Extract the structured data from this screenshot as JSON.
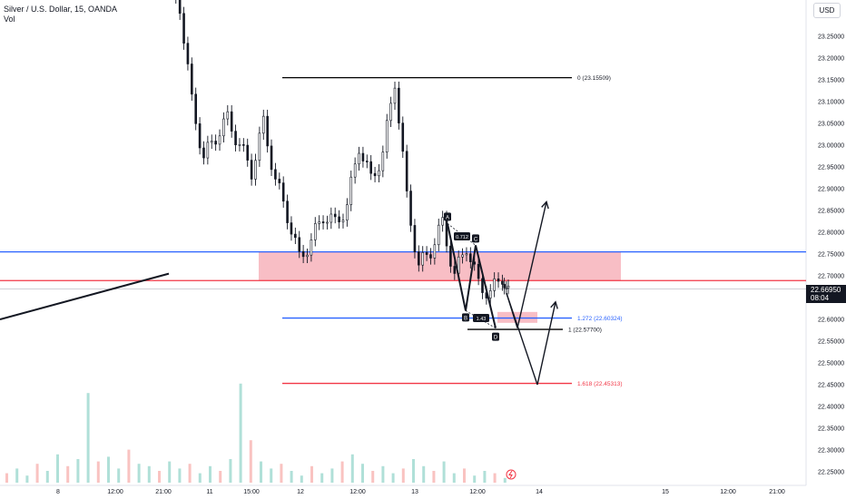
{
  "header": {
    "symbol_line": "Silver / U.S. Dollar, 15, OANDA",
    "indicator": "Vol"
  },
  "currency_button": "USD",
  "last_price": {
    "value": "22.66950",
    "countdown": "08:04"
  },
  "chart_data": {
    "type": "candlestick",
    "y_axis": {
      "range": [
        22.22,
        23.36
      ],
      "ticks": [
        "23.25000",
        "23.20000",
        "23.15000",
        "23.10000",
        "23.05000",
        "23.00000",
        "22.95000",
        "22.90000",
        "22.85000",
        "22.80000",
        "22.75000",
        "22.70000",
        "22.65000",
        "22.60000",
        "22.55000",
        "22.50000",
        "22.45000",
        "22.40000",
        "22.35000",
        "22.30000",
        "22.25000"
      ]
    },
    "x_axis": {
      "ticks": [
        "8",
        "12:00",
        "21:00",
        "11",
        "15:00",
        "12",
        "12:00",
        "13",
        "12:00",
        "14",
        "15",
        "12:00",
        "21:00"
      ]
    },
    "price_path": [
      [
        0,
        23.36
      ],
      [
        2,
        23.32
      ],
      [
        4,
        23.1
      ],
      [
        6,
        22.97
      ],
      [
        8,
        23.02
      ],
      [
        10,
        23.06
      ],
      [
        12,
        23.0
      ],
      [
        14,
        22.94
      ],
      [
        16,
        23.05
      ],
      [
        18,
        22.92
      ],
      [
        20,
        22.84
      ],
      [
        22,
        22.74
      ],
      [
        24,
        22.78
      ],
      [
        26,
        22.84
      ],
      [
        28,
        22.82
      ],
      [
        30,
        22.86
      ],
      [
        32,
        23.0
      ],
      [
        34,
        22.92
      ],
      [
        36,
        22.98
      ],
      [
        38,
        23.15
      ],
      [
        40,
        22.88
      ],
      [
        42,
        22.72
      ],
      [
        44,
        22.76
      ],
      [
        46,
        22.82
      ],
      [
        48,
        22.7
      ],
      [
        50,
        22.77
      ],
      [
        52,
        22.68
      ],
      [
        54,
        22.66
      ],
      [
        56,
        22.7
      ],
      [
        57,
        22.67
      ]
    ],
    "volume_path": [
      4,
      6,
      3,
      8,
      5,
      12,
      7,
      10,
      38,
      9,
      11,
      6,
      14,
      8,
      7,
      5,
      9,
      6,
      8,
      4,
      7,
      5,
      10,
      42,
      18,
      9,
      6,
      8,
      5,
      3,
      7,
      4,
      6,
      9,
      12,
      8,
      5,
      7,
      4,
      6,
      10,
      7,
      5,
      9,
      4,
      6,
      3,
      5,
      4,
      2
    ],
    "horizontal_levels": [
      {
        "price": 22.755,
        "color": "#2962ff"
      },
      {
        "price": 22.689,
        "color": "#f23645"
      }
    ],
    "zone": {
      "top": 22.755,
      "bottom": 22.689,
      "color": "#f7b3bb"
    },
    "fib": {
      "levels": [
        {
          "label": "0 (23.15509)",
          "price": 23.155,
          "color": "#000000"
        },
        {
          "label": "1 (22.57700)",
          "price": 22.577,
          "color": "#000000"
        },
        {
          "label": "1.272 (22.60324)",
          "price": 22.603,
          "color": "#2962ff"
        },
        {
          "label": "1.618 (22.45313)",
          "price": 22.453,
          "color": "#f23645"
        }
      ]
    },
    "pattern": {
      "points": [
        {
          "label": "A",
          "price": 22.82
        },
        {
          "label": "B",
          "price": 22.62
        },
        {
          "label": "C",
          "price": 22.77
        },
        {
          "label": "D",
          "price": 22.58
        }
      ],
      "ratios": [
        "0.712",
        "1.43"
      ]
    },
    "trendline": {
      "from": 22.6,
      "to": 22.705
    },
    "projections": [
      {
        "from": 22.58,
        "to": 22.87
      },
      {
        "from": 22.6,
        "to": 22.64
      },
      {
        "from": 22.64,
        "to": 22.45
      }
    ]
  }
}
